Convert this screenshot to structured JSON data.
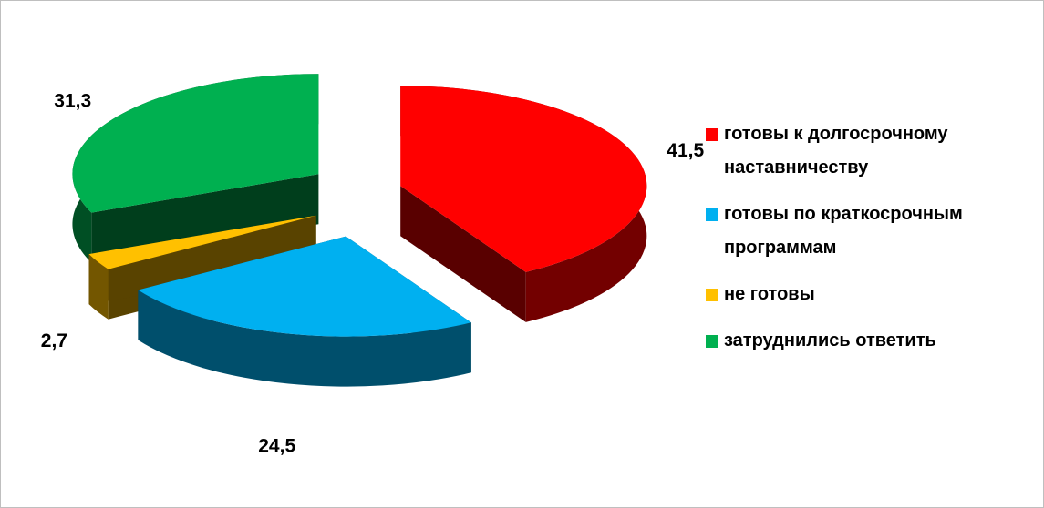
{
  "chart_data": {
    "type": "pie",
    "categories": [
      "готовы к долгосрочному наставничеству",
      "готовы по краткосрочным программам",
      "не готовы",
      "затруднились ответить"
    ],
    "values": [
      41.5,
      24.5,
      2.7,
      31.3
    ],
    "value_labels": [
      "41,5",
      "24,5",
      "2,7",
      "31,3"
    ],
    "colors": [
      "#ff0000",
      "#00b0f0",
      "#ffc000",
      "#00b050"
    ],
    "legend": "right"
  }
}
